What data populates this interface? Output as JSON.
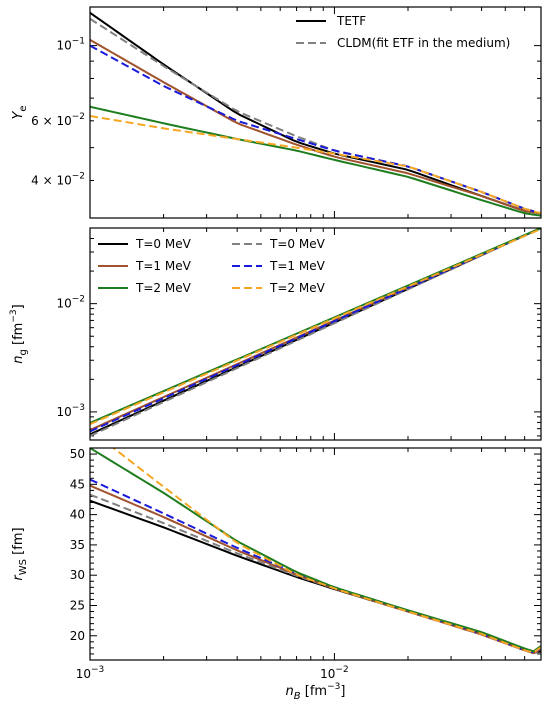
{
  "chart_data": [
    {
      "type": "line",
      "panel": "top",
      "ylabel_symbol": "Y",
      "ylabel_sub": "e",
      "xscale": "log",
      "yscale": "log",
      "xlim": [
        0.001,
        0.07
      ],
      "ylim": [
        0.031,
        0.13
      ],
      "y_ticks": [
        {
          "value": 0.1,
          "mant": "10",
          "exp": "−1"
        },
        {
          "value": 0.06,
          "mant": "6 × 10",
          "exp": "−2"
        },
        {
          "value": 0.04,
          "mant": "4 × 10",
          "exp": "−2"
        }
      ],
      "legend": {
        "position": "top-right",
        "entries": [
          {
            "label": "TETF",
            "color": "#000000",
            "style": "solid"
          },
          {
            "label": "CLDM(fit ETF in the medium)",
            "color": "#808080",
            "style": "dashed"
          }
        ]
      },
      "series": [
        {
          "color": "#000000",
          "style": "solid",
          "x": [
            0.001,
            0.002,
            0.004,
            0.007,
            0.01,
            0.02,
            0.04,
            0.06,
            0.07
          ],
          "y": [
            0.125,
            0.088,
            0.063,
            0.052,
            0.048,
            0.043,
            0.036,
            0.0325,
            0.032
          ]
        },
        {
          "color": "#808080",
          "style": "dashed",
          "x": [
            0.001,
            0.002,
            0.004,
            0.007,
            0.01,
            0.02,
            0.04,
            0.06,
            0.07
          ],
          "y": [
            0.12,
            0.087,
            0.064,
            0.054,
            0.049,
            0.044,
            0.037,
            0.033,
            0.032
          ]
        },
        {
          "color": "#a0522d",
          "style": "solid",
          "x": [
            0.001,
            0.002,
            0.004,
            0.007,
            0.01,
            0.02,
            0.04,
            0.06,
            0.07
          ],
          "y": [
            0.104,
            0.078,
            0.059,
            0.051,
            0.047,
            0.042,
            0.036,
            0.0325,
            0.032
          ]
        },
        {
          "color": "#1a1adb",
          "style": "dashed",
          "x": [
            0.001,
            0.002,
            0.004,
            0.007,
            0.01,
            0.02,
            0.04,
            0.06,
            0.07
          ],
          "y": [
            0.1,
            0.076,
            0.06,
            0.053,
            0.049,
            0.044,
            0.037,
            0.033,
            0.032
          ]
        },
        {
          "color": "#1e7d1e",
          "style": "solid",
          "x": [
            0.001,
            0.002,
            0.004,
            0.007,
            0.01,
            0.02,
            0.04,
            0.06,
            0.07
          ],
          "y": [
            0.066,
            0.059,
            0.053,
            0.049,
            0.046,
            0.041,
            0.035,
            0.032,
            0.0315
          ]
        },
        {
          "color": "#f5a623",
          "style": "dashed",
          "x": [
            0.001,
            0.002,
            0.004,
            0.007,
            0.01,
            0.02,
            0.04,
            0.06,
            0.07
          ],
          "y": [
            0.062,
            0.057,
            0.053,
            0.05,
            0.048,
            0.044,
            0.037,
            0.033,
            0.032
          ]
        }
      ]
    },
    {
      "type": "line",
      "panel": "middle",
      "ylabel_symbol": "n",
      "ylabel_sub": "g",
      "ylabel_unit": " [fm",
      "ylabel_unit_exp": "−3",
      "ylabel_unit_close": "]",
      "xscale": "log",
      "yscale": "log",
      "xlim": [
        0.001,
        0.07
      ],
      "ylim": [
        0.00055,
        0.05
      ],
      "y_ticks": [
        {
          "value": 0.01,
          "mant": "10",
          "exp": "−2"
        },
        {
          "value": 0.001,
          "mant": "10",
          "exp": "−3"
        }
      ],
      "legend": {
        "position": "top-left",
        "entries": [
          {
            "label": "T=0 MeV",
            "color": "#000000",
            "style": "solid"
          },
          {
            "label": "T=0 MeV",
            "color": "#808080",
            "style": "dashed"
          },
          {
            "label": "T=1 MeV",
            "color": "#a0522d",
            "style": "solid"
          },
          {
            "label": "T=1 MeV",
            "color": "#1a1adb",
            "style": "dashed"
          },
          {
            "label": "T=2 MeV",
            "color": "#1e7d1e",
            "style": "solid"
          },
          {
            "label": "T=2 MeV",
            "color": "#f5a623",
            "style": "dashed"
          }
        ]
      },
      "series": [
        {
          "color": "#000000",
          "style": "solid",
          "x": [
            0.001,
            0.07
          ],
          "y": [
            0.00062,
            0.05
          ]
        },
        {
          "color": "#808080",
          "style": "dashed",
          "x": [
            0.001,
            0.07
          ],
          "y": [
            0.0006,
            0.05
          ]
        },
        {
          "color": "#a0522d",
          "style": "solid",
          "x": [
            0.001,
            0.07
          ],
          "y": [
            0.00068,
            0.05
          ]
        },
        {
          "color": "#1a1adb",
          "style": "dashed",
          "x": [
            0.001,
            0.07
          ],
          "y": [
            0.00066,
            0.05
          ]
        },
        {
          "color": "#1e7d1e",
          "style": "solid",
          "x": [
            0.001,
            0.07
          ],
          "y": [
            0.00079,
            0.05
          ]
        },
        {
          "color": "#f5a623",
          "style": "dashed",
          "x": [
            0.001,
            0.07
          ],
          "y": [
            0.00077,
            0.049
          ]
        }
      ]
    },
    {
      "type": "line",
      "panel": "bottom",
      "ylabel_symbol": "r",
      "ylabel_sub": "WS",
      "ylabel_unit": " [fm]",
      "xlabel_symbol": "n",
      "xlabel_sub": "B",
      "xlabel_unit": " [fm",
      "xlabel_unit_exp": "−3",
      "xlabel_unit_close": "]",
      "xscale": "log",
      "yscale": "linear",
      "xlim": [
        0.001,
        0.07
      ],
      "ylim": [
        16,
        51
      ],
      "y_ticks": [
        {
          "value": 50,
          "label": "50"
        },
        {
          "value": 45,
          "label": "45"
        },
        {
          "value": 40,
          "label": "40"
        },
        {
          "value": 35,
          "label": "35"
        },
        {
          "value": 30,
          "label": "30"
        },
        {
          "value": 25,
          "label": "25"
        },
        {
          "value": 20,
          "label": "20"
        }
      ],
      "x_ticks": [
        {
          "value": 0.001,
          "mant": "10",
          "exp": "−3"
        },
        {
          "value": 0.01,
          "mant": "10",
          "exp": "−2"
        }
      ],
      "series": [
        {
          "color": "#000000",
          "style": "solid",
          "x": [
            0.001,
            0.002,
            0.004,
            0.007,
            0.01,
            0.02,
            0.04,
            0.06,
            0.065,
            0.07
          ],
          "y": [
            42.3,
            37.9,
            33.2,
            29.7,
            27.7,
            24.0,
            20.3,
            17.7,
            17.2,
            17.4
          ]
        },
        {
          "color": "#808080",
          "style": "dashed",
          "x": [
            0.001,
            0.002,
            0.004,
            0.007,
            0.01,
            0.02,
            0.04,
            0.06,
            0.065,
            0.07
          ],
          "y": [
            43.3,
            38.6,
            33.6,
            29.9,
            27.8,
            24.0,
            20.2,
            17.6,
            17.1,
            17.5
          ]
        },
        {
          "color": "#a0522d",
          "style": "solid",
          "x": [
            0.001,
            0.002,
            0.004,
            0.007,
            0.01,
            0.02,
            0.04,
            0.06,
            0.065,
            0.07
          ],
          "y": [
            44.8,
            39.6,
            34.1,
            30.1,
            27.8,
            24.0,
            20.2,
            17.6,
            17.1,
            17.8
          ]
        },
        {
          "color": "#1a1adb",
          "style": "dashed",
          "x": [
            0.001,
            0.002,
            0.004,
            0.007,
            0.01,
            0.02,
            0.04,
            0.06,
            0.065,
            0.07
          ],
          "y": [
            45.8,
            40.2,
            34.5,
            30.3,
            28.0,
            24.1,
            20.3,
            17.6,
            17.2,
            18.0
          ]
        },
        {
          "color": "#1e7d1e",
          "style": "solid",
          "x": [
            0.001,
            0.002,
            0.004,
            0.007,
            0.01,
            0.02,
            0.04,
            0.06,
            0.065,
            0.07
          ],
          "y": [
            51.0,
            43.6,
            35.6,
            30.5,
            28.0,
            24.2,
            20.6,
            17.9,
            17.4,
            18.3
          ]
        },
        {
          "color": "#f5a623",
          "style": "dashed",
          "x": [
            0.001,
            0.002,
            0.004,
            0.007,
            0.01,
            0.02,
            0.04,
            0.06,
            0.065,
            0.07
          ],
          "y": [
            54.0,
            44.6,
            35.3,
            30.1,
            27.8,
            24.0,
            20.3,
            17.6,
            17.2,
            18.1
          ]
        }
      ]
    }
  ]
}
